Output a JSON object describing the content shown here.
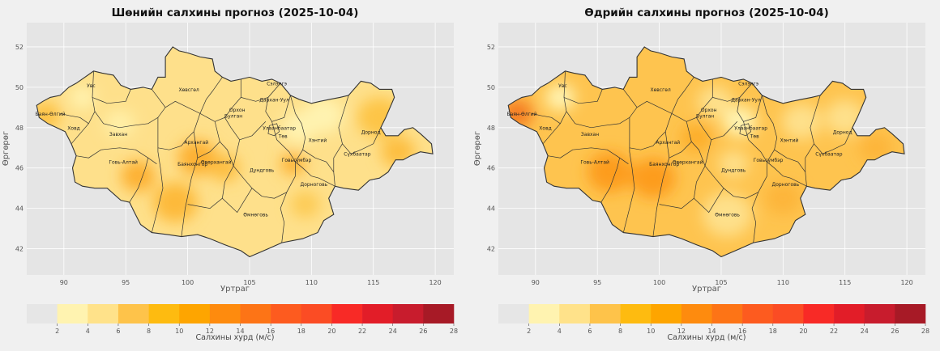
{
  "panels": [
    {
      "title": "Шөнийн салхины прогноз (2025-10-04)",
      "xlabel": "Уртраг",
      "ylabel": "Өргөрөг",
      "x_ticks": [
        "90",
        "95",
        "100",
        "105",
        "110",
        "115",
        "120"
      ],
      "y_ticks": [
        "42",
        "44",
        "46",
        "48",
        "50",
        "52"
      ],
      "colorbar_label": "Салхины хурд (м/с)",
      "colorbar_ticks": [
        "2",
        "4",
        "6",
        "8",
        "10",
        "12",
        "14",
        "16",
        "18",
        "20",
        "22",
        "24",
        "26",
        "28"
      ],
      "provinces": [
        "Увс",
        "Баян-Өлгий",
        "Ховд",
        "Завхан",
        "Говь-Алтай",
        "Хөвсгөл",
        "Архангай",
        "Баянхонгор",
        "Өвөрхангай",
        "Булган",
        "Орхон",
        "Сэлэнгэ",
        "Дархан-Уул",
        "Улаанбаатар",
        "Төв",
        "Хэнтий",
        "Дорнод",
        "Сүхбаатар",
        "Дундговь",
        "Говьсүмбэр",
        "Дорноговь",
        "Өмнөговь"
      ]
    },
    {
      "title": "Өдрийн салхины прогноз (2025-10-04)",
      "xlabel": "Уртраг",
      "ylabel": "Өргөрөг",
      "x_ticks": [
        "90",
        "95",
        "100",
        "105",
        "110",
        "115",
        "120"
      ],
      "y_ticks": [
        "42",
        "44",
        "46",
        "48",
        "50",
        "52"
      ],
      "colorbar_label": "Салхины хурд (м/с)",
      "colorbar_ticks": [
        "2",
        "4",
        "6",
        "8",
        "10",
        "12",
        "14",
        "16",
        "18",
        "20",
        "22",
        "24",
        "26",
        "28"
      ],
      "provinces": [
        "Увс",
        "Баян-Өлгий",
        "Ховд",
        "Завхан",
        "Говь-Алтай",
        "Хөвсгөл",
        "Архангай",
        "Баянхонгор",
        "Өвөрхангай",
        "Булган",
        "Орхон",
        "Сэлэнгэ",
        "Дархан-Уул",
        "Улаанбаатар",
        "Төв",
        "Хэнтий",
        "Дорнод",
        "Сүхбаатар",
        "Дундговь",
        "Говьсүмбэр",
        "Дорноговь",
        "Өмнөговь"
      ]
    }
  ],
  "colors": {
    "plot_bg": "#e5e5e5",
    "grid": "#ffffff",
    "border": "#333333",
    "colorbar": [
      "#e6e6e6",
      "#fff3b0",
      "#ffe28a",
      "#fec34a",
      "#febb10",
      "#fea500",
      "#fe8b0e",
      "#fd7416",
      "#fd5b1f",
      "#fb4c24",
      "#f82a26",
      "#e21d28",
      "#c81c2d",
      "#a71a26"
    ]
  },
  "maps": [
    {
      "base_color": "#fee08b",
      "blobs": [
        {
          "lon": 88.5,
          "lat": 48.6,
          "r": 1.2,
          "color": "#fdc040"
        },
        {
          "lon": 96.0,
          "lat": 45.6,
          "r": 1.4,
          "color": "#fdb030"
        },
        {
          "lon": 99.0,
          "lat": 44.3,
          "r": 1.8,
          "color": "#fdba3a"
        },
        {
          "lon": 100.8,
          "lat": 46.5,
          "r": 1.6,
          "color": "#fdb030"
        },
        {
          "lon": 103.0,
          "lat": 46.0,
          "r": 1.2,
          "color": "#fdbd40"
        },
        {
          "lon": 108.5,
          "lat": 46.2,
          "r": 1.0,
          "color": "#fdb030"
        },
        {
          "lon": 109.5,
          "lat": 44.2,
          "r": 1.2,
          "color": "#fdcb55"
        },
        {
          "lon": 109.0,
          "lat": 48.0,
          "r": 1.4,
          "color": "#fff3b0"
        },
        {
          "lon": 111.0,
          "lat": 48.6,
          "r": 1.6,
          "color": "#fff3b0"
        },
        {
          "lon": 115.5,
          "lat": 48.5,
          "r": 1.8,
          "color": "#fdc547"
        },
        {
          "lon": 117.0,
          "lat": 46.8,
          "r": 1.4,
          "color": "#fdbe40"
        },
        {
          "lon": 91.5,
          "lat": 49.5,
          "r": 1.0,
          "color": "#fff3b0"
        },
        {
          "lon": 94.5,
          "lat": 48.2,
          "r": 1.2,
          "color": "#fff0a8"
        }
      ]
    },
    {
      "base_color": "#fec44f",
      "blobs": [
        {
          "lon": 88.5,
          "lat": 48.7,
          "r": 1.3,
          "color": "#f47c20"
        },
        {
          "lon": 92.0,
          "lat": 49.5,
          "r": 1.2,
          "color": "#fff3b0"
        },
        {
          "lon": 96.0,
          "lat": 45.8,
          "r": 1.8,
          "color": "#fd9c1a"
        },
        {
          "lon": 99.5,
          "lat": 45.5,
          "r": 1.8,
          "color": "#fd9c1a"
        },
        {
          "lon": 103.0,
          "lat": 47.5,
          "r": 1.3,
          "color": "#fdae2a"
        },
        {
          "lon": 104.5,
          "lat": 49.3,
          "r": 1.4,
          "color": "#fee08b"
        },
        {
          "lon": 106.5,
          "lat": 48.3,
          "r": 1.4,
          "color": "#fff3b0"
        },
        {
          "lon": 106.0,
          "lat": 46.2,
          "r": 1.2,
          "color": "#fee08b"
        },
        {
          "lon": 105.5,
          "lat": 43.7,
          "r": 2.0,
          "color": "#fee08b"
        },
        {
          "lon": 110.0,
          "lat": 44.5,
          "r": 1.5,
          "color": "#fdb53a"
        },
        {
          "lon": 111.5,
          "lat": 48.3,
          "r": 1.6,
          "color": "#fee08b"
        },
        {
          "lon": 115.0,
          "lat": 48.5,
          "r": 1.6,
          "color": "#fee08b"
        },
        {
          "lon": 117.5,
          "lat": 47.0,
          "r": 1.4,
          "color": "#fdb53a"
        }
      ]
    }
  ]
}
